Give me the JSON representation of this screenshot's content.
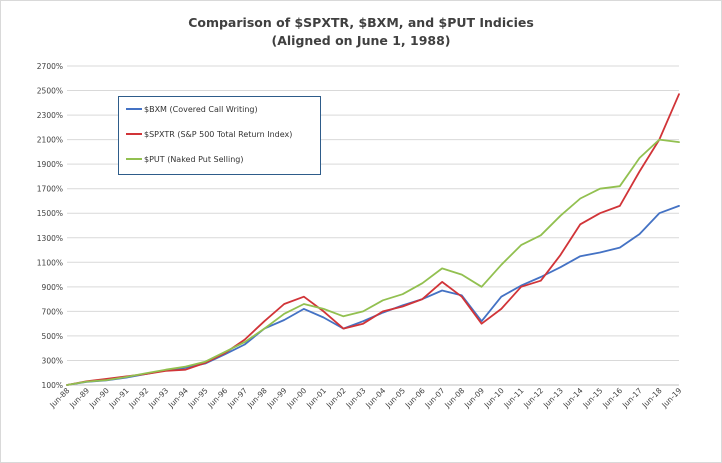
{
  "chart_data": {
    "type": "line",
    "title": "Comparison of $SPXTR, $BXM, and $PUT Indicies",
    "subtitle": "(Aligned on June 1, 1988)",
    "xlabel": "",
    "ylabel": "",
    "y_ticks": [
      "100%",
      "300%",
      "500%",
      "700%",
      "900%",
      "1100%",
      "1300%",
      "1500%",
      "1700%",
      "1900%",
      "2100%",
      "2300%",
      "2500%",
      "2700%"
    ],
    "x_ticks": [
      "Jun-88",
      "Jun-89",
      "Jun-90",
      "Jun-91",
      "Jun-92",
      "Jun-93",
      "Jun-94",
      "Jun-95",
      "Jun-96",
      "Jun-97",
      "Jun-98",
      "Jun-99",
      "Jun-00",
      "Jun-01",
      "Jun-02",
      "Jun-03",
      "Jun-04",
      "Jun-05",
      "Jun-06",
      "Jun-07",
      "Jun-08",
      "Jun-09",
      "Jun-10",
      "Jun-11",
      "Jun-12",
      "Jun-13",
      "Jun-14",
      "Jun-15",
      "Jun-16",
      "Jun-17",
      "Jun-18",
      "Jun-19"
    ],
    "ylim": [
      100,
      2700
    ],
    "xlim": [
      "Jun-88",
      "Jun-19"
    ],
    "grid": true,
    "legend_position": "top-left",
    "series": [
      {
        "name": "$BXM (Covered Call Writing)",
        "color": "#4472c4",
        "points": [
          [
            "Jun-88",
            100
          ],
          [
            "Jun-89",
            125
          ],
          [
            "Jun-90",
            138
          ],
          [
            "Jun-91",
            160
          ],
          [
            "Jun-92",
            190
          ],
          [
            "Jun-93",
            220
          ],
          [
            "Jun-94",
            240
          ],
          [
            "Jun-95",
            275
          ],
          [
            "Jun-96",
            350
          ],
          [
            "Jun-97",
            430
          ],
          [
            "Jun-98",
            560
          ],
          [
            "Jun-99",
            630
          ],
          [
            "Jun-00",
            720
          ],
          [
            "Jun-01",
            650
          ],
          [
            "Jun-02",
            560
          ],
          [
            "Jun-03",
            620
          ],
          [
            "Jun-04",
            690
          ],
          [
            "Jun-05",
            750
          ],
          [
            "Jun-06",
            800
          ],
          [
            "Jun-07",
            870
          ],
          [
            "Jun-08",
            830
          ],
          [
            "Jun-09",
            620
          ],
          [
            "Jun-10",
            820
          ],
          [
            "Jun-11",
            910
          ],
          [
            "Jun-12",
            980
          ],
          [
            "Jun-13",
            1060
          ],
          [
            "Jun-14",
            1150
          ],
          [
            "Jun-15",
            1180
          ],
          [
            "Jun-16",
            1220
          ],
          [
            "Jun-17",
            1330
          ],
          [
            "Jun-18",
            1500
          ],
          [
            "Jun-19",
            1560
          ]
        ]
      },
      {
        "name": "$SPXTR (S&P 500 Total Return Index)",
        "color": "#d13438",
        "points": [
          [
            "Jun-88",
            100
          ],
          [
            "Jun-89",
            130
          ],
          [
            "Jun-90",
            150
          ],
          [
            "Jun-91",
            170
          ],
          [
            "Jun-92",
            190
          ],
          [
            "Jun-93",
            215
          ],
          [
            "Jun-94",
            225
          ],
          [
            "Jun-95",
            280
          ],
          [
            "Jun-96",
            360
          ],
          [
            "Jun-97",
            470
          ],
          [
            "Jun-98",
            620
          ],
          [
            "Jun-99",
            760
          ],
          [
            "Jun-00",
            820
          ],
          [
            "Jun-01",
            700
          ],
          [
            "Jun-02",
            560
          ],
          [
            "Jun-03",
            600
          ],
          [
            "Jun-04",
            700
          ],
          [
            "Jun-05",
            740
          ],
          [
            "Jun-06",
            800
          ],
          [
            "Jun-07",
            940
          ],
          [
            "Jun-08",
            820
          ],
          [
            "Jun-09",
            600
          ],
          [
            "Jun-10",
            720
          ],
          [
            "Jun-11",
            900
          ],
          [
            "Jun-12",
            950
          ],
          [
            "Jun-13",
            1160
          ],
          [
            "Jun-14",
            1410
          ],
          [
            "Jun-15",
            1500
          ],
          [
            "Jun-16",
            1560
          ],
          [
            "Jun-17",
            1840
          ],
          [
            "Jun-18",
            2100
          ],
          [
            "Jun-19",
            2470
          ]
        ]
      },
      {
        "name": "$PUT (Naked Put Selling)",
        "color": "#92c050",
        "points": [
          [
            "Jun-88",
            100
          ],
          [
            "Jun-89",
            128
          ],
          [
            "Jun-90",
            140
          ],
          [
            "Jun-91",
            165
          ],
          [
            "Jun-92",
            195
          ],
          [
            "Jun-93",
            225
          ],
          [
            "Jun-94",
            250
          ],
          [
            "Jun-95",
            290
          ],
          [
            "Jun-96",
            370
          ],
          [
            "Jun-97",
            450
          ],
          [
            "Jun-98",
            560
          ],
          [
            "Jun-99",
            680
          ],
          [
            "Jun-00",
            760
          ],
          [
            "Jun-01",
            720
          ],
          [
            "Jun-02",
            660
          ],
          [
            "Jun-03",
            700
          ],
          [
            "Jun-04",
            790
          ],
          [
            "Jun-05",
            840
          ],
          [
            "Jun-06",
            930
          ],
          [
            "Jun-07",
            1050
          ],
          [
            "Jun-08",
            1000
          ],
          [
            "Jun-09",
            900
          ],
          [
            "Jun-10",
            1080
          ],
          [
            "Jun-11",
            1240
          ],
          [
            "Jun-12",
            1320
          ],
          [
            "Jun-13",
            1480
          ],
          [
            "Jun-14",
            1620
          ],
          [
            "Jun-15",
            1700
          ],
          [
            "Jun-16",
            1720
          ],
          [
            "Jun-17",
            1950
          ],
          [
            "Jun-18",
            2100
          ],
          [
            "Jun-19",
            2080
          ]
        ]
      }
    ]
  }
}
